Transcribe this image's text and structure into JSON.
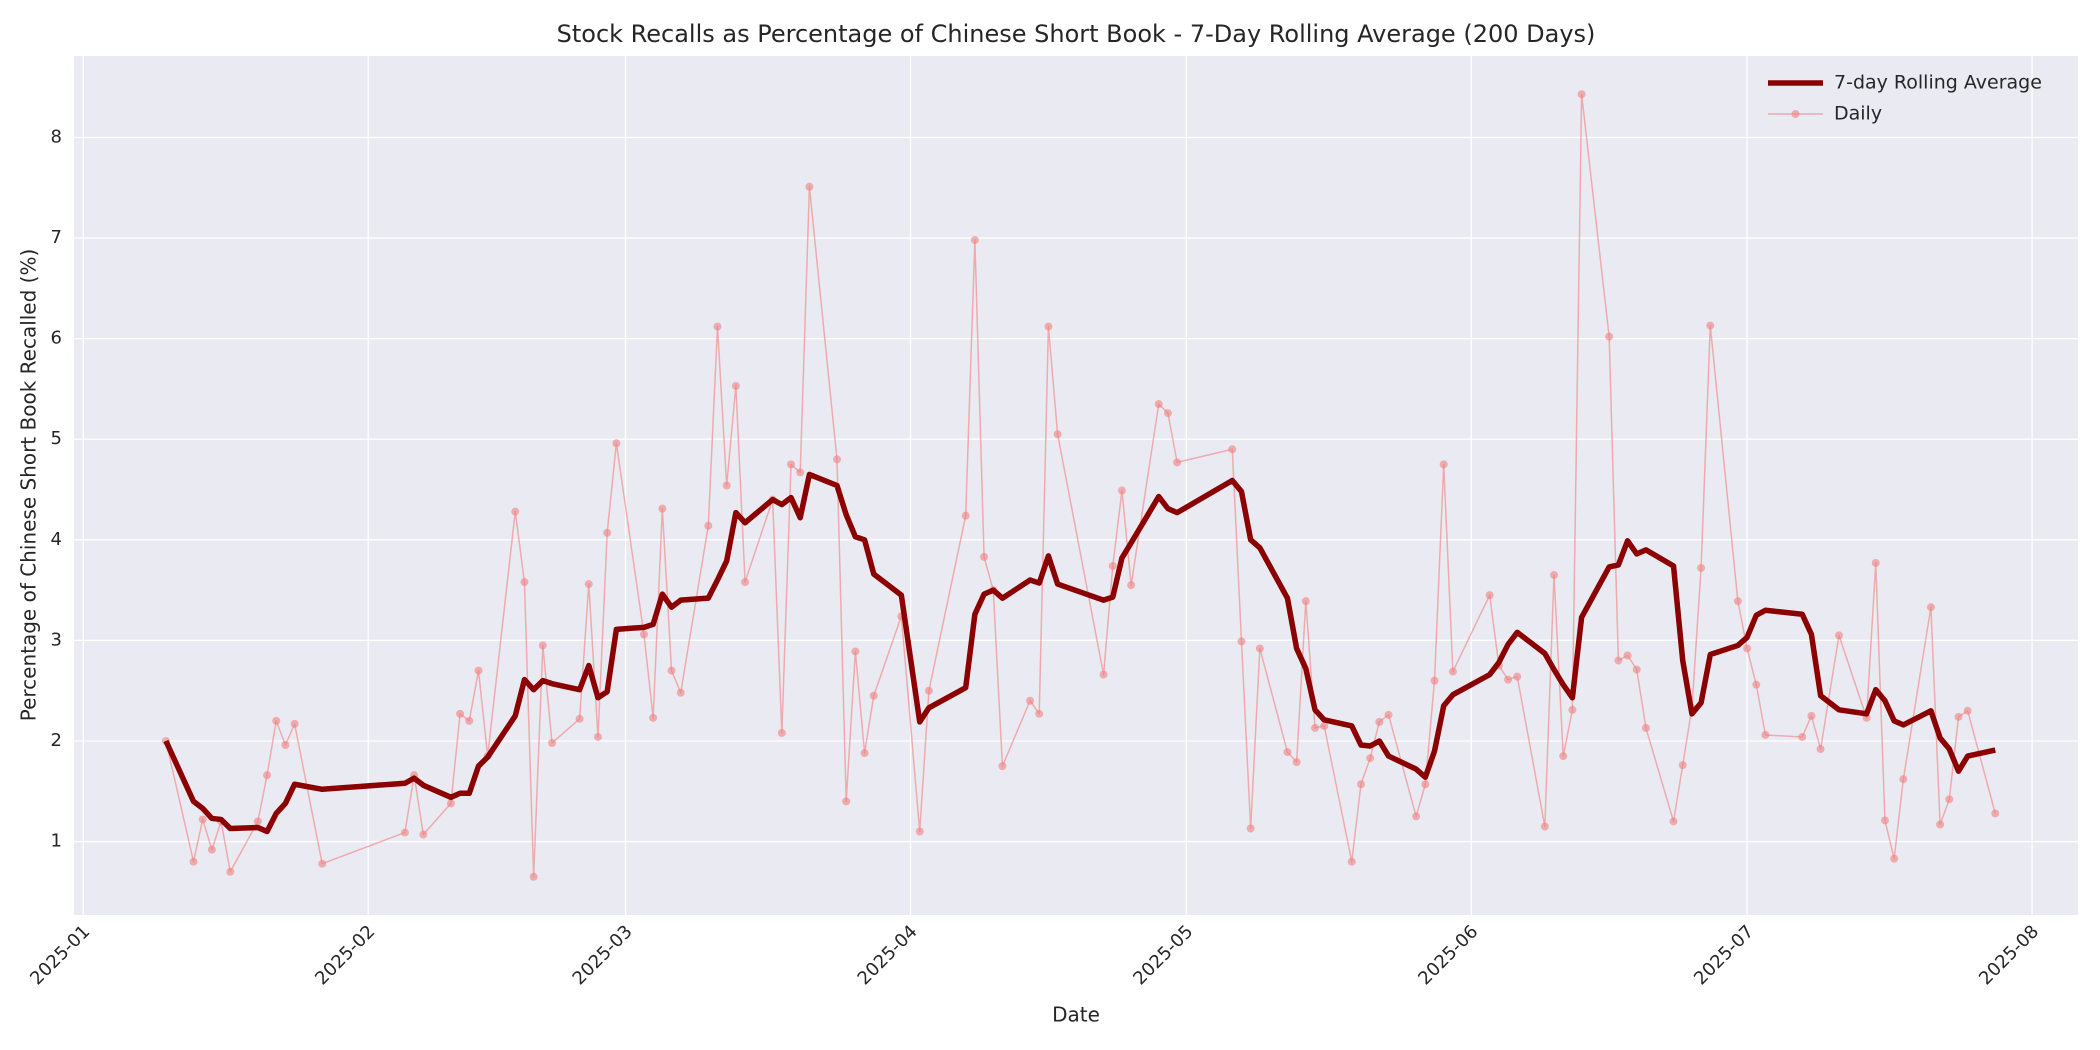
{
  "chart_data": {
    "type": "line",
    "title": "Stock Recalls as Percentage of Chinese Short Book - 7-Day Rolling Average (200 Days)",
    "x_label": "Date",
    "y_label": "Percentage of Chinese Short Book Recalled (%)",
    "x": [
      "2025-01-10",
      "2025-01-13",
      "2025-01-14",
      "2025-01-15",
      "2025-01-16",
      "2025-01-17",
      "2025-01-20",
      "2025-01-21",
      "2025-01-22",
      "2025-01-23",
      "2025-01-24",
      "2025-01-27",
      "2025-02-05",
      "2025-02-06",
      "2025-02-07",
      "2025-02-10",
      "2025-02-11",
      "2025-02-12",
      "2025-02-13",
      "2025-02-14",
      "2025-02-17",
      "2025-02-18",
      "2025-02-19",
      "2025-02-20",
      "2025-02-21",
      "2025-02-24",
      "2025-02-25",
      "2025-02-26",
      "2025-02-27",
      "2025-02-28",
      "2025-03-03",
      "2025-03-04",
      "2025-03-05",
      "2025-03-06",
      "2025-03-07",
      "2025-03-10",
      "2025-03-11",
      "2025-03-12",
      "2025-03-13",
      "2025-03-14",
      "2025-03-17",
      "2025-03-18",
      "2025-03-19",
      "2025-03-20",
      "2025-03-21",
      "2025-03-24",
      "2025-03-25",
      "2025-03-26",
      "2025-03-27",
      "2025-03-28",
      "2025-03-31",
      "2025-04-02",
      "2025-04-03",
      "2025-04-07",
      "2025-04-08",
      "2025-04-09",
      "2025-04-10",
      "2025-04-11",
      "2025-04-14",
      "2025-04-15",
      "2025-04-16",
      "2025-04-17",
      "2025-04-22",
      "2025-04-23",
      "2025-04-24",
      "2025-04-25",
      "2025-04-28",
      "2025-04-29",
      "2025-04-30",
      "2025-05-06",
      "2025-05-07",
      "2025-05-08",
      "2025-05-09",
      "2025-05-12",
      "2025-05-13",
      "2025-05-14",
      "2025-05-15",
      "2025-05-16",
      "2025-05-19",
      "2025-05-20",
      "2025-05-21",
      "2025-05-22",
      "2025-05-23",
      "2025-05-26",
      "2025-05-27",
      "2025-05-28",
      "2025-05-29",
      "2025-05-30",
      "2025-06-03",
      "2025-06-04",
      "2025-06-05",
      "2025-06-06",
      "2025-06-09",
      "2025-06-10",
      "2025-06-11",
      "2025-06-12",
      "2025-06-13",
      "2025-06-16",
      "2025-06-17",
      "2025-06-18",
      "2025-06-19",
      "2025-06-20",
      "2025-06-23",
      "2025-06-24",
      "2025-06-25",
      "2025-06-26",
      "2025-06-27",
      "2025-06-30",
      "2025-07-01",
      "2025-07-02",
      "2025-07-03",
      "2025-07-07",
      "2025-07-08",
      "2025-07-09",
      "2025-07-11",
      "2025-07-14",
      "2025-07-15",
      "2025-07-16",
      "2025-07-17",
      "2025-07-18",
      "2025-07-21",
      "2025-07-22",
      "2025-07-23",
      "2025-07-24",
      "2025-07-25",
      "2025-07-28"
    ],
    "series": [
      {
        "name": "7-day Rolling Average",
        "color": "#8b0000",
        "markers": false,
        "values": [
          2.0,
          1.4,
          1.33,
          1.23,
          1.22,
          1.13,
          1.14,
          1.1,
          1.28,
          1.38,
          1.57,
          1.52,
          1.58,
          1.63,
          1.56,
          1.44,
          1.48,
          1.48,
          1.75,
          1.84,
          2.25,
          2.61,
          2.51,
          2.6,
          2.57,
          2.51,
          2.75,
          2.43,
          2.49,
          3.11,
          3.13,
          3.16,
          3.46,
          3.33,
          3.4,
          3.42,
          3.6,
          3.79,
          4.27,
          4.17,
          4.4,
          4.35,
          4.42,
          4.22,
          4.65,
          4.54,
          4.25,
          4.03,
          4.0,
          3.66,
          3.45,
          2.19,
          2.33,
          2.53,
          3.26,
          3.46,
          3.5,
          3.42,
          3.6,
          3.57,
          3.84,
          3.56,
          3.4,
          3.43,
          3.82,
          3.97,
          4.43,
          4.31,
          4.27,
          4.59,
          4.48,
          4.0,
          3.92,
          3.42,
          2.92,
          2.72,
          2.31,
          2.21,
          2.15,
          1.96,
          1.95,
          2.0,
          1.85,
          1.72,
          1.64,
          1.9,
          2.35,
          2.46,
          2.66,
          2.78,
          2.96,
          3.08,
          2.87,
          2.71,
          2.56,
          2.43,
          3.23,
          3.73,
          3.75,
          3.99,
          3.86,
          3.9,
          3.74,
          2.8,
          2.27,
          2.38,
          2.86,
          2.95,
          3.03,
          3.25,
          3.3,
          3.26,
          3.06,
          2.45,
          2.31,
          2.27,
          2.51,
          2.4,
          2.2,
          2.16,
          2.3,
          2.03,
          1.92,
          1.7,
          1.85,
          1.91
        ]
      },
      {
        "name": "Daily",
        "color": "#f08080",
        "markers": true,
        "values": [
          2.0,
          0.8,
          1.22,
          0.92,
          1.2,
          0.7,
          1.2,
          1.66,
          2.2,
          1.96,
          2.17,
          0.78,
          1.09,
          1.66,
          1.07,
          1.38,
          2.27,
          2.2,
          2.7,
          1.85,
          4.28,
          3.58,
          0.65,
          2.95,
          1.98,
          2.22,
          3.56,
          2.04,
          4.07,
          4.96,
          3.06,
          2.23,
          4.31,
          2.7,
          2.48,
          4.14,
          6.12,
          4.54,
          5.53,
          3.58,
          4.4,
          2.08,
          4.75,
          4.67,
          7.51,
          4.8,
          1.4,
          2.89,
          1.88,
          2.45,
          3.24,
          1.1,
          2.5,
          4.24,
          6.98,
          3.83,
          3.5,
          1.75,
          2.4,
          2.27,
          6.12,
          5.05,
          2.66,
          3.74,
          4.49,
          3.55,
          5.35,
          5.26,
          4.77,
          4.9,
          2.99,
          1.13,
          2.92,
          1.89,
          1.79,
          3.39,
          2.13,
          2.15,
          0.8,
          1.57,
          1.83,
          2.19,
          2.26,
          1.25,
          1.57,
          2.6,
          4.75,
          2.69,
          3.45,
          2.75,
          2.61,
          2.64,
          1.15,
          3.65,
          1.85,
          2.31,
          8.43,
          6.02,
          2.8,
          2.85,
          2.71,
          2.13,
          1.2,
          1.76,
          2.33,
          3.72,
          6.13,
          3.39,
          2.92,
          2.56,
          2.06,
          2.04,
          2.25,
          1.92,
          3.05,
          2.23,
          3.77,
          1.21,
          0.83,
          1.62,
          3.33,
          1.17,
          1.42,
          2.24,
          2.3,
          1.28
        ]
      }
    ],
    "xlim": [
      "2024-12-31",
      "2025-08-06"
    ],
    "xticks": [
      {
        "value": "2025-01-01",
        "label": "2025-01"
      },
      {
        "value": "2025-02-01",
        "label": "2025-02"
      },
      {
        "value": "2025-03-01",
        "label": "2025-03"
      },
      {
        "value": "2025-04-01",
        "label": "2025-04"
      },
      {
        "value": "2025-05-01",
        "label": "2025-05"
      },
      {
        "value": "2025-06-01",
        "label": "2025-06"
      },
      {
        "value": "2025-07-01",
        "label": "2025-07"
      },
      {
        "value": "2025-08-01",
        "label": "2025-08"
      }
    ],
    "ylim": [
      0.27,
      8.81
    ],
    "yticks": [
      1,
      2,
      3,
      4,
      5,
      6,
      7,
      8
    ],
    "grid": true,
    "legend": "upper right"
  }
}
